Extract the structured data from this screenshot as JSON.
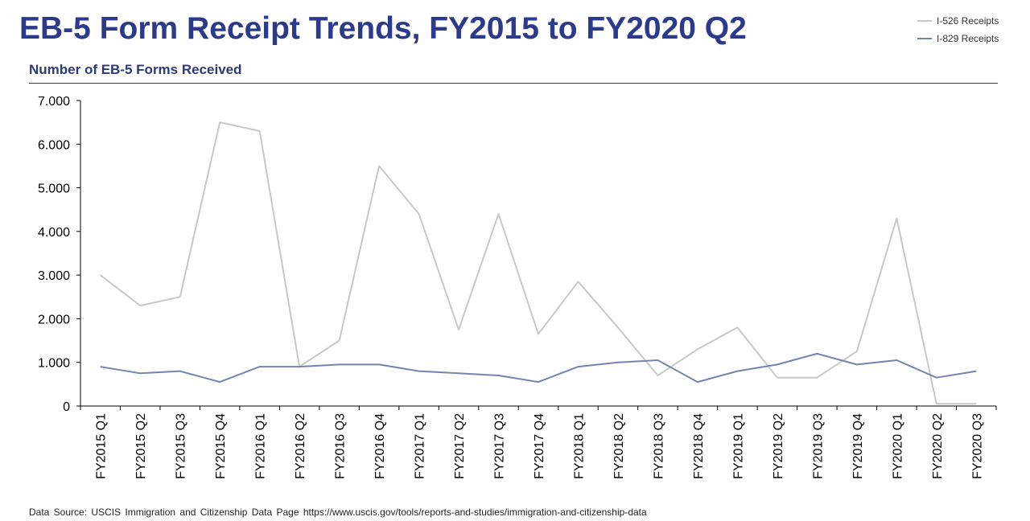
{
  "header": {
    "title": "EB-5 Form Receipt Trends, FY2015 to FY2020 Q2",
    "subtitle": "Number of EB-5 Forms Received"
  },
  "footer": {
    "source": "Data Source: USCIS Immigration and Citizenship Data Page https://www.uscis.gov/tools/reports-and-studies/immigration-and-citizenship-data"
  },
  "colors": {
    "title": "#2b3a8a",
    "i526": "#c8c8c8",
    "i829": "#7585b0"
  },
  "chart_data": {
    "type": "line",
    "categories": [
      "FY2015 Q1",
      "FY2015 Q2",
      "FY2015 Q3",
      "FY2015 Q4",
      "FY2016 Q1",
      "FY2016 Q2",
      "FY2016 Q3",
      "FY2016 Q4",
      "FY2017 Q1",
      "FY2017 Q2",
      "FY2017 Q3",
      "FY2017 Q4",
      "FY2018 Q1",
      "FY2018 Q2",
      "FY2018 Q3",
      "FY2018 Q4",
      "FY2019 Q1",
      "FY2019 Q2",
      "FY2019 Q3",
      "FY2019 Q4",
      "FY2020 Q1",
      "FY2020 Q2",
      "FY2020 Q3"
    ],
    "series": [
      {
        "name": "I-526 Receipts",
        "color": "#c8c8c8",
        "values": [
          3000,
          2300,
          2500,
          6500,
          6300,
          900,
          1500,
          5500,
          4400,
          1750,
          4400,
          1650,
          2850,
          1800,
          700,
          1300,
          1800,
          650,
          650,
          1250,
          4300,
          50,
          50
        ]
      },
      {
        "name": "I-829 Receipts",
        "color": "#7585b0",
        "values": [
          900,
          750,
          800,
          550,
          900,
          900,
          950,
          950,
          800,
          750,
          700,
          550,
          900,
          1000,
          1050,
          550,
          800,
          950,
          1200,
          950,
          1050,
          650,
          800
        ]
      }
    ],
    "ylim": [
      0,
      7000
    ],
    "yticks": [
      0,
      1000,
      2000,
      3000,
      4000,
      5000,
      6000,
      7000
    ],
    "ytick_labels": [
      "0",
      "1.000",
      "2.000",
      "3.000",
      "4.000",
      "5.000",
      "6.000",
      "7.000"
    ],
    "grid": false,
    "legend_position": "top-right"
  }
}
